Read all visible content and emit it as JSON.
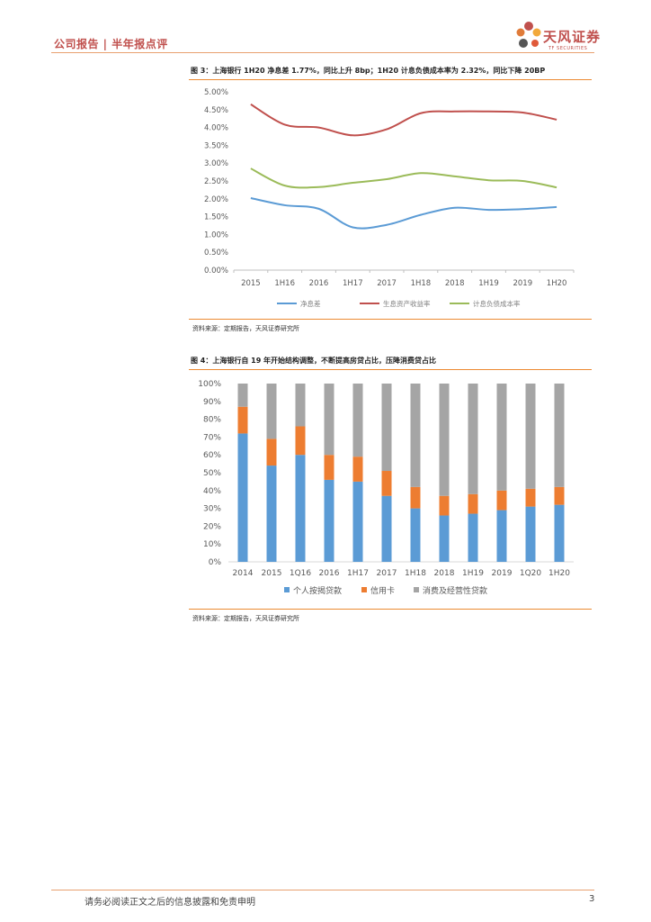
{
  "header": {
    "title": "公司报告 | 半年报点评",
    "logo_cn": "天风证券",
    "logo_en": "TF SECURITIES"
  },
  "colors": {
    "accent": "#ec8a32",
    "brand": "#c0504d",
    "blue": "#5b9bd5",
    "red": "#c0504d",
    "green": "#9bbb59",
    "orange": "#ed7d31",
    "gray": "#a5a5a5"
  },
  "figure3": {
    "caption": "图 3：上海银行 1H20 净息差 1.77%，同比上升 8bp；1H20 计息负债成本率为 2.32%，同比下降 20BP",
    "source": "资料来源：定期报告，天风证券研究所"
  },
  "figure4": {
    "caption": "图 4：上海银行自 19 年开始结构调整，不断提高房贷占比，压降消费贷占比",
    "source": "资料来源：定期报告，天风证券研究所"
  },
  "chart_data": [
    {
      "type": "line",
      "categories": [
        "2015",
        "1H16",
        "2016",
        "1H17",
        "2017",
        "1H18",
        "2018",
        "1H19",
        "2019",
        "1H20"
      ],
      "series": [
        {
          "name": "净息差",
          "values": [
            2.02,
            1.82,
            1.72,
            1.2,
            1.27,
            1.55,
            1.75,
            1.69,
            1.71,
            1.77
          ]
        },
        {
          "name": "生息资产收益率",
          "values": [
            4.65,
            4.08,
            4.0,
            3.78,
            3.95,
            4.4,
            4.45,
            4.45,
            4.42,
            4.22
          ]
        },
        {
          "name": "计息负债成本率",
          "values": [
            2.85,
            2.37,
            2.33,
            2.45,
            2.55,
            2.72,
            2.63,
            2.52,
            2.5,
            2.32
          ]
        }
      ],
      "ylim": [
        0,
        5
      ],
      "y_ticks": [
        "0.00%",
        "0.50%",
        "1.00%",
        "1.50%",
        "2.00%",
        "2.50%",
        "3.00%",
        "3.50%",
        "4.00%",
        "4.50%",
        "5.00%"
      ],
      "legend_position": "bottom"
    },
    {
      "type": "bar",
      "stacked": true,
      "categories": [
        "2014",
        "2015",
        "1Q16",
        "2016",
        "1H17",
        "2017",
        "1H18",
        "2018",
        "1H19",
        "2019",
        "1Q20",
        "1H20"
      ],
      "series": [
        {
          "name": "个人按揭贷款",
          "values": [
            72,
            54,
            60,
            46,
            45,
            37,
            30,
            26,
            27,
            29,
            31,
            32
          ]
        },
        {
          "name": "信用卡",
          "values": [
            15,
            15,
            16,
            14,
            14,
            14,
            12,
            11,
            11,
            11,
            10,
            10
          ]
        },
        {
          "name": "消费及经营性贷款",
          "values": [
            13,
            31,
            24,
            40,
            41,
            49,
            58,
            63,
            62,
            60,
            59,
            58
          ]
        }
      ],
      "ylim": [
        0,
        100
      ],
      "y_ticks": [
        "0%",
        "10%",
        "20%",
        "30%",
        "40%",
        "50%",
        "60%",
        "70%",
        "80%",
        "90%",
        "100%"
      ],
      "legend_position": "bottom"
    }
  ],
  "footer": {
    "disclaimer": "请务必阅读正文之后的信息披露和免责申明",
    "page": "3"
  }
}
